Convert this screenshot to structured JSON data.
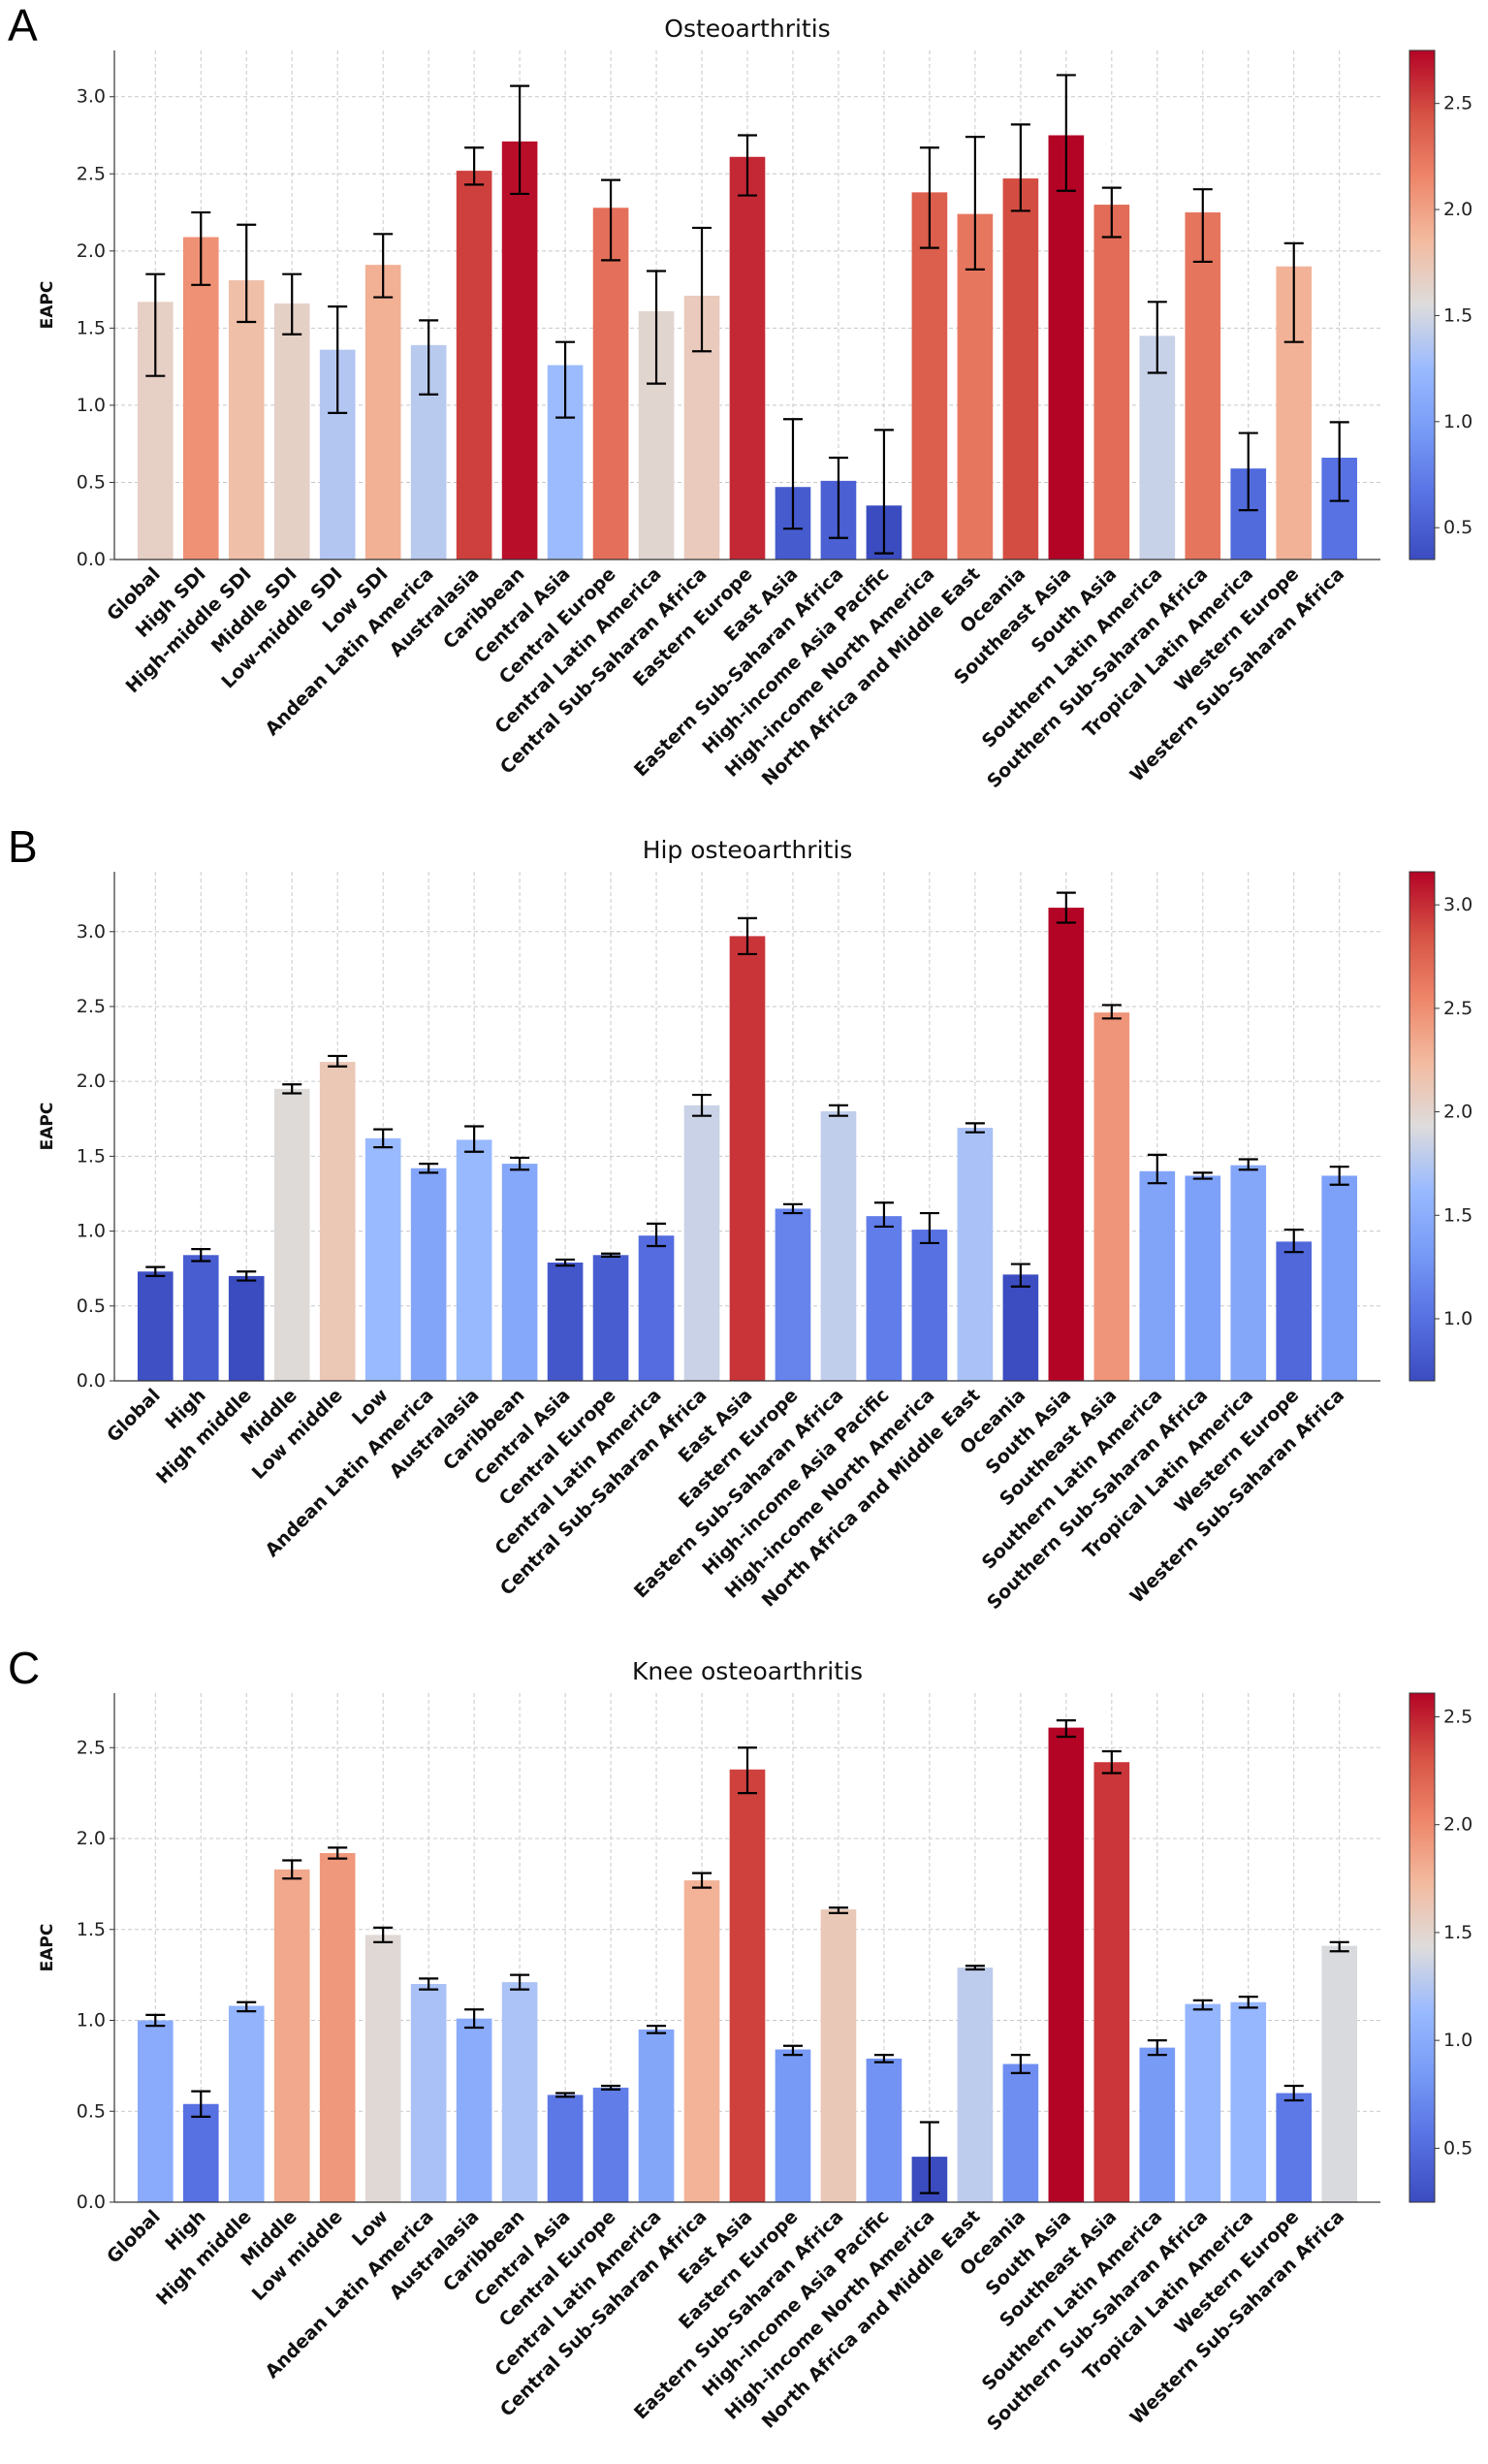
{
  "chart_data": [
    {
      "panel_label": "A",
      "type": "bar",
      "title": "Osteoarthritis",
      "xlabel": "",
      "ylabel": "EAPC",
      "ylim": [
        0,
        3.3
      ],
      "yticks": [
        0.0,
        0.5,
        1.0,
        1.5,
        2.0,
        2.5,
        3.0
      ],
      "colorbar": {
        "range": [
          0.35,
          2.75
        ],
        "ticks": [
          0.5,
          1.0,
          1.5,
          2.0,
          2.5
        ]
      },
      "grid": true,
      "categories": [
        "Global",
        "High SDI",
        "High-middle SDI",
        "Middle SDI",
        "Low-middle SDI",
        "Low SDI",
        "Andean Latin America",
        "Australasia",
        "Caribbean",
        "Central Asia",
        "Central Europe",
        "Central Latin America",
        "Central Sub-Saharan Africa",
        "Eastern Europe",
        "East Asia",
        "Eastern Sub-Saharan Africa",
        "High-income Asia Pacific",
        "High-income North America",
        "North Africa and Middle East",
        "Oceania",
        "Southeast Asia",
        "South Asia",
        "Southern Latin America",
        "Southern Sub-Saharan Africa",
        "Tropical Latin America",
        "Western Europe",
        "Western Sub-Saharan Africa"
      ],
      "values": [
        1.67,
        2.09,
        1.81,
        1.66,
        1.36,
        1.91,
        1.39,
        2.52,
        2.71,
        1.26,
        2.28,
        1.61,
        1.71,
        2.61,
        0.47,
        0.51,
        0.35,
        2.38,
        2.24,
        2.47,
        2.75,
        2.3,
        1.45,
        2.25,
        0.59,
        1.9,
        0.66
      ],
      "lower": [
        1.19,
        1.78,
        1.54,
        1.46,
        0.95,
        1.7,
        1.07,
        2.43,
        2.37,
        0.92,
        1.94,
        1.14,
        1.35,
        2.36,
        0.2,
        0.14,
        0.04,
        2.02,
        1.88,
        2.26,
        2.39,
        2.09,
        1.21,
        1.93,
        0.32,
        1.41,
        0.38
      ],
      "upper": [
        1.85,
        2.25,
        2.17,
        1.85,
        1.64,
        2.11,
        1.55,
        2.67,
        3.07,
        1.41,
        2.46,
        1.87,
        2.15,
        2.75,
        0.91,
        0.66,
        0.84,
        2.67,
        2.74,
        2.82,
        3.14,
        2.41,
        1.67,
        2.4,
        0.82,
        2.05,
        0.89
      ]
    },
    {
      "panel_label": "B",
      "type": "bar",
      "title": "Hip osteoarthritis",
      "xlabel": "",
      "ylabel": "EAPC",
      "ylim": [
        0,
        3.4
      ],
      "yticks": [
        0.0,
        0.5,
        1.0,
        1.5,
        2.0,
        2.5,
        3.0
      ],
      "colorbar": {
        "range": [
          0.7,
          3.16
        ],
        "ticks": [
          1.0,
          1.5,
          2.0,
          2.5,
          3.0
        ]
      },
      "grid": true,
      "categories": [
        "Global",
        "High",
        "High middle",
        "Middle",
        "Low middle",
        "Low",
        "Andean Latin America",
        "Australasia",
        "Caribbean",
        "Central Asia",
        "Central Europe",
        "Central Latin America",
        "Central Sub-Saharan Africa",
        "East Asia",
        "Eastern Europe",
        "Eastern Sub-Saharan Africa",
        "High-income Asia Pacific",
        "High-income North America",
        "North Africa and Middle East",
        "Oceania",
        "South Asia",
        "Southeast Asia",
        "Southern Latin America",
        "Southern Sub-Saharan Africa",
        "Tropical Latin America",
        "Western Europe",
        "Western Sub-Saharan Africa"
      ],
      "values": [
        0.73,
        0.84,
        0.7,
        1.95,
        2.13,
        1.62,
        1.42,
        1.61,
        1.45,
        0.79,
        0.84,
        0.97,
        1.84,
        2.97,
        1.15,
        1.8,
        1.1,
        1.01,
        1.69,
        0.71,
        3.16,
        2.46,
        1.4,
        1.37,
        1.44,
        0.93,
        1.37
      ],
      "lower": [
        0.7,
        0.8,
        0.67,
        1.92,
        2.1,
        1.56,
        1.39,
        1.53,
        1.41,
        0.77,
        0.83,
        0.9,
        1.77,
        2.85,
        1.12,
        1.77,
        1.03,
        0.92,
        1.66,
        0.63,
        3.06,
        2.42,
        1.32,
        1.35,
        1.41,
        0.86,
        1.31
      ],
      "upper": [
        0.76,
        0.88,
        0.73,
        1.98,
        2.17,
        1.68,
        1.45,
        1.7,
        1.49,
        0.81,
        0.85,
        1.05,
        1.91,
        3.09,
        1.18,
        1.84,
        1.19,
        1.12,
        1.72,
        0.78,
        3.26,
        2.51,
        1.51,
        1.39,
        1.48,
        1.01,
        1.43
      ]
    },
    {
      "panel_label": "C",
      "type": "bar",
      "title": "Knee osteoarthritis",
      "xlabel": "",
      "ylabel": "EAPC",
      "ylim": [
        0,
        2.8
      ],
      "yticks": [
        0.0,
        0.5,
        1.0,
        1.5,
        2.0,
        2.5
      ],
      "colorbar": {
        "range": [
          0.25,
          2.61
        ],
        "ticks": [
          0.5,
          1.0,
          1.5,
          2.0,
          2.5
        ]
      },
      "grid": true,
      "categories": [
        "Global",
        "High",
        "High middle",
        "Middle",
        "Low middle",
        "Low",
        "Andean Latin America",
        "Australasia",
        "Caribbean",
        "Central Asia",
        "Central Europe",
        "Central Latin America",
        "Central Sub-Saharan Africa",
        "East Asia",
        "Eastern Europe",
        "Eastern Sub-Saharan Africa",
        "High-income Asia Pacific",
        "High-income North America",
        "North Africa and Middle East",
        "Oceania",
        "South Asia",
        "Southeast Asia",
        "Southern Latin America",
        "Southern Sub-Saharan Africa",
        "Tropical Latin America",
        "Western Europe",
        "Western Sub-Saharan Africa"
      ],
      "values": [
        1.0,
        0.54,
        1.08,
        1.83,
        1.92,
        1.47,
        1.2,
        1.01,
        1.21,
        0.59,
        0.63,
        0.95,
        1.77,
        2.38,
        0.84,
        1.61,
        0.79,
        0.25,
        1.29,
        0.76,
        2.61,
        2.42,
        0.85,
        1.09,
        1.1,
        0.6,
        1.41
      ],
      "lower": [
        0.97,
        0.47,
        1.05,
        1.78,
        1.89,
        1.43,
        1.17,
        0.96,
        1.17,
        0.58,
        0.62,
        0.93,
        1.73,
        2.25,
        0.81,
        1.59,
        0.77,
        0.05,
        1.28,
        0.71,
        2.56,
        2.36,
        0.81,
        1.06,
        1.07,
        0.56,
        1.38
      ],
      "upper": [
        1.03,
        0.61,
        1.1,
        1.88,
        1.95,
        1.51,
        1.23,
        1.06,
        1.25,
        0.6,
        0.64,
        0.97,
        1.81,
        2.5,
        0.86,
        1.62,
        0.81,
        0.44,
        1.3,
        0.81,
        2.65,
        2.48,
        0.89,
        1.11,
        1.13,
        0.64,
        1.43
      ]
    }
  ]
}
